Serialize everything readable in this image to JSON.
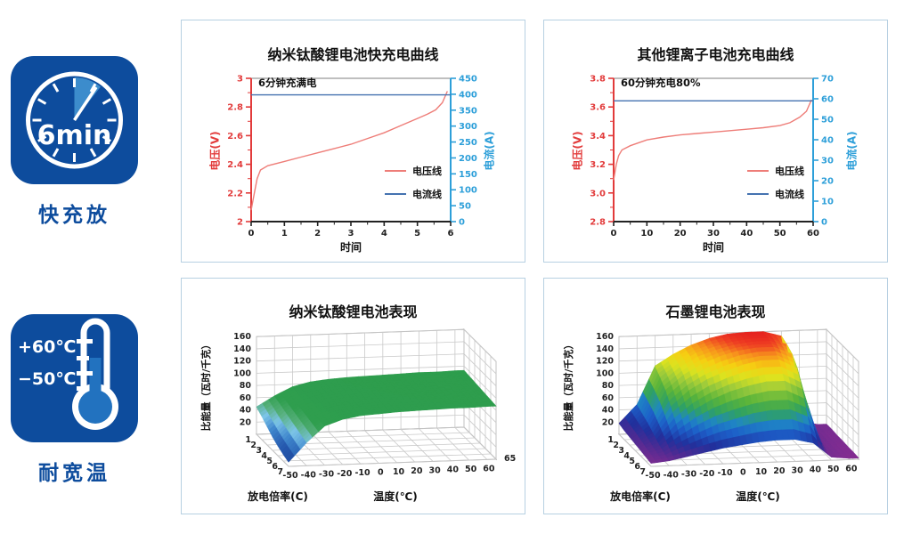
{
  "badges": {
    "fast_charge": {
      "clock_text": "6min",
      "label": "快充放",
      "square_color": "#0d4c9d",
      "wedge_color": "#3c8ccc"
    },
    "wide_temp": {
      "high_temp": "+60℃",
      "low_temp": "−50℃",
      "label": "耐宽温",
      "square_color": "#0d4c9d",
      "mercury_color": "#2272bf"
    }
  },
  "chart_data": [
    {
      "type": "line",
      "title": "纳米钛酸锂电池快充电曲线",
      "annotation": "6分钟充满电",
      "xlabel": "时间",
      "xlim": [
        0,
        6
      ],
      "x_major_ticks": [
        0,
        1,
        2,
        3,
        4,
        5,
        6
      ],
      "x_minor_step": 0.5,
      "y_left": {
        "label": "电压(V)",
        "color": "#e23b3b",
        "lim": [
          2,
          3
        ],
        "ticks": [
          "2",
          "2.2",
          "2.4",
          "2.6",
          "2.8",
          "3"
        ],
        "minor_step": 0.1
      },
      "y_right": {
        "label": "电流(A)",
        "color": "#2d9fd9",
        "lim": [
          0,
          450
        ],
        "ticks": [
          "0",
          "50",
          "100",
          "150",
          "200",
          "250",
          "300",
          "350",
          "400",
          "450"
        ]
      },
      "series": [
        {
          "name": "电压线",
          "axis": "left",
          "color": "#ee7d78",
          "points": [
            [
              0,
              2.08
            ],
            [
              0.08,
              2.18
            ],
            [
              0.18,
              2.3
            ],
            [
              0.28,
              2.36
            ],
            [
              0.5,
              2.39
            ],
            [
              1,
              2.42
            ],
            [
              1.5,
              2.45
            ],
            [
              2,
              2.48
            ],
            [
              2.5,
              2.51
            ],
            [
              3,
              2.54
            ],
            [
              3.5,
              2.58
            ],
            [
              4,
              2.62
            ],
            [
              4.5,
              2.67
            ],
            [
              5,
              2.72
            ],
            [
              5.3,
              2.75
            ],
            [
              5.55,
              2.78
            ],
            [
              5.75,
              2.83
            ],
            [
              5.9,
              2.91
            ]
          ]
        },
        {
          "name": "电流线",
          "axis": "right",
          "color": "#4472b0",
          "points": [
            [
              0,
              398
            ],
            [
              6,
              398
            ]
          ]
        }
      ]
    },
    {
      "type": "line",
      "title": "其他锂离子电池充电曲线",
      "annotation": "60分钟充电80%",
      "xlabel": "时间",
      "xlim": [
        0,
        60
      ],
      "x_major_ticks": [
        0,
        10,
        20,
        30,
        40,
        50,
        60
      ],
      "x_minor_step": 5,
      "y_left": {
        "label": "电压(V)",
        "color": "#e23b3b",
        "lim": [
          2.8,
          3.8
        ],
        "ticks": [
          "2.8",
          "3.0",
          "3.2",
          "3.4",
          "3.6",
          "3.8"
        ],
        "minor_step": 0.1
      },
      "y_right": {
        "label": "电流(A)",
        "color": "#2d9fd9",
        "lim": [
          0,
          70
        ],
        "ticks": [
          "0",
          "10",
          "20",
          "30",
          "40",
          "50",
          "60",
          "70"
        ]
      },
      "series": [
        {
          "name": "电压线",
          "axis": "left",
          "color": "#ee7d78",
          "points": [
            [
              0,
              3.09
            ],
            [
              0.8,
              3.2
            ],
            [
              1.5,
              3.26
            ],
            [
              2.5,
              3.3
            ],
            [
              5,
              3.33
            ],
            [
              10,
              3.37
            ],
            [
              15,
              3.39
            ],
            [
              20,
              3.405
            ],
            [
              25,
              3.415
            ],
            [
              30,
              3.425
            ],
            [
              35,
              3.435
            ],
            [
              40,
              3.445
            ],
            [
              45,
              3.455
            ],
            [
              50,
              3.47
            ],
            [
              53,
              3.49
            ],
            [
              56,
              3.53
            ],
            [
              58,
              3.57
            ],
            [
              59.5,
              3.65
            ]
          ]
        },
        {
          "name": "电流线",
          "axis": "right",
          "color": "#4472b0",
          "points": [
            [
              0,
              59
            ],
            [
              60,
              59
            ]
          ]
        }
      ]
    },
    {
      "type": "surface",
      "title": "纳米钛酸锂电池表现",
      "zlabel": "比能量（瓦时/千克）",
      "xlabel": "温度(℃)",
      "ylabel": "放电倍率(C)",
      "temps": [
        -50,
        -40,
        -30,
        -20,
        -10,
        0,
        10,
        20,
        30,
        40,
        50,
        60,
        65
      ],
      "temp_tick_labels": [
        "-50",
        "-40",
        "-30",
        "-20",
        "-10",
        "0",
        "10",
        "20",
        "30",
        "40",
        "50",
        "60"
      ],
      "end_label": "65",
      "rates": [
        "1",
        "2",
        "3",
        "4",
        "5",
        "6",
        "7"
      ],
      "zlim": [
        0,
        160
      ],
      "z_ticks": [
        "20",
        "40",
        "60",
        "80",
        "100",
        "120",
        "140",
        "160"
      ],
      "colormap": [
        [
          0,
          "#1a3c8f"
        ],
        [
          18,
          "#2558ae"
        ],
        [
          30,
          "#3f86cc"
        ],
        [
          40,
          "#7cc4e8"
        ],
        [
          50,
          "#57b07c"
        ],
        [
          62,
          "#2f9e4e"
        ],
        [
          160,
          "#2a9a4c"
        ]
      ],
      "z": [
        [
          45,
          62,
          76,
          83,
          86,
          88,
          89,
          90,
          91,
          92,
          92,
          93,
          93
        ],
        [
          38,
          58,
          74,
          81,
          85,
          87,
          88,
          89,
          90,
          91,
          91,
          92,
          92
        ],
        [
          30,
          54,
          72,
          80,
          84,
          86,
          87,
          88,
          89,
          90,
          90,
          91,
          91
        ],
        [
          22,
          50,
          70,
          78,
          82,
          85,
          86,
          87,
          88,
          89,
          89,
          90,
          90
        ],
        [
          16,
          46,
          68,
          77,
          81,
          84,
          85,
          86,
          87,
          88,
          88,
          89,
          89
        ],
        [
          11,
          42,
          66,
          75,
          80,
          82,
          84,
          85,
          86,
          87,
          87,
          88,
          88
        ],
        [
          7,
          38,
          64,
          74,
          79,
          81,
          83,
          84,
          85,
          86,
          86,
          87,
          87
        ]
      ]
    },
    {
      "type": "surface",
      "title": "石墨锂电池表现",
      "zlabel": "比能量（瓦时/千克）",
      "xlabel": "温度(℃)",
      "ylabel": "放电倍率(C)",
      "temps": [
        -50,
        -40,
        -30,
        -20,
        -10,
        0,
        10,
        20,
        30,
        40,
        50,
        60,
        65
      ],
      "temp_tick_labels": [
        "-50",
        "-40",
        "-30",
        "-20",
        "-10",
        "0",
        "10",
        "20",
        "30",
        "40",
        "50",
        "60"
      ],
      "end_label": "",
      "rates": [
        "1",
        "2",
        "3",
        "4",
        "5",
        "6",
        "7"
      ],
      "zlim": [
        0,
        160
      ],
      "z_ticks": [
        "20",
        "40",
        "60",
        "80",
        "100",
        "120",
        "140",
        "160"
      ],
      "colormap": [
        [
          0,
          "#8c2c90"
        ],
        [
          16,
          "#4b2b93"
        ],
        [
          28,
          "#20309c"
        ],
        [
          45,
          "#1d5fc9"
        ],
        [
          58,
          "#1f86c5"
        ],
        [
          72,
          "#2fa163"
        ],
        [
          88,
          "#5ab43a"
        ],
        [
          104,
          "#9aca3c"
        ],
        [
          118,
          "#dce21f"
        ],
        [
          132,
          "#f6cf12"
        ],
        [
          144,
          "#f7941d"
        ],
        [
          154,
          "#ee3d23"
        ],
        [
          160,
          "#e5231f"
        ]
      ],
      "z": [
        [
          18,
          48,
          110,
          128,
          142,
          152,
          158,
          160,
          160,
          152,
          12,
          5,
          5
        ],
        [
          15,
          42,
          100,
          122,
          138,
          147,
          154,
          158,
          158,
          147,
          10,
          5,
          5
        ],
        [
          13,
          36,
          88,
          112,
          128,
          140,
          148,
          152,
          152,
          140,
          9,
          4,
          4
        ],
        [
          11,
          28,
          70,
          95,
          112,
          124,
          134,
          140,
          140,
          125,
          8,
          4,
          4
        ],
        [
          9,
          20,
          50,
          72,
          88,
          100,
          108,
          114,
          114,
          99,
          7,
          3,
          3
        ],
        [
          7,
          14,
          30,
          44,
          56,
          64,
          72,
          76,
          76,
          63,
          6,
          3,
          3
        ],
        [
          5,
          8,
          14,
          20,
          26,
          30,
          34,
          36,
          36,
          29,
          5,
          2,
          2
        ]
      ]
    }
  ]
}
